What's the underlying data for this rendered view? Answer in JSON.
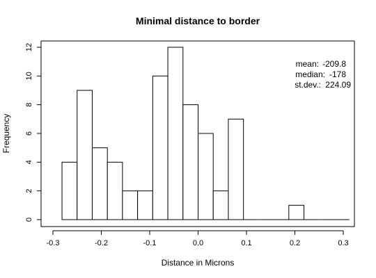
{
  "chart_data": {
    "type": "bar",
    "title": "Minimal distance to border",
    "xlabel": "Distance in Microns",
    "ylabel": "Frequency",
    "bin_width": 0.03125,
    "bins": [
      {
        "start": -0.28125,
        "end": -0.25,
        "count": 4
      },
      {
        "start": -0.25,
        "end": -0.21875,
        "count": 9
      },
      {
        "start": -0.21875,
        "end": -0.1875,
        "count": 5
      },
      {
        "start": -0.1875,
        "end": -0.15625,
        "count": 4
      },
      {
        "start": -0.15625,
        "end": -0.125,
        "count": 2
      },
      {
        "start": -0.125,
        "end": -0.09375,
        "count": 2
      },
      {
        "start": -0.09375,
        "end": -0.0625,
        "count": 10
      },
      {
        "start": -0.0625,
        "end": -0.03125,
        "count": 12
      },
      {
        "start": -0.03125,
        "end": 0.0,
        "count": 8
      },
      {
        "start": 0.0,
        "end": 0.03125,
        "count": 6
      },
      {
        "start": 0.03125,
        "end": 0.0625,
        "count": 2
      },
      {
        "start": 0.0625,
        "end": 0.09375,
        "count": 7
      },
      {
        "start": 0.09375,
        "end": 0.125,
        "count": 0
      },
      {
        "start": 0.125,
        "end": 0.15625,
        "count": 0
      },
      {
        "start": 0.15625,
        "end": 0.1875,
        "count": 0
      },
      {
        "start": 0.1875,
        "end": 0.21875,
        "count": 1
      },
      {
        "start": 0.21875,
        "end": 0.25,
        "count": 0
      },
      {
        "start": 0.25,
        "end": 0.28125,
        "count": 0
      },
      {
        "start": 0.28125,
        "end": 0.3125,
        "count": 0
      }
    ],
    "xlim": [
      -0.3,
      0.3
    ],
    "ylim": [
      0,
      12
    ],
    "x_ticks": [
      -0.3,
      -0.2,
      -0.1,
      0.0,
      0.1,
      0.2,
      0.3
    ],
    "x_tick_labels": [
      "-0.3",
      "-0.2",
      "-0.1",
      "0.0",
      "0.1",
      "0.2",
      "0.3"
    ],
    "y_ticks": [
      0,
      2,
      4,
      6,
      8,
      10,
      12
    ],
    "y_tick_labels": [
      "0",
      "2",
      "4",
      "6",
      "8",
      "10",
      "12"
    ],
    "grid": false,
    "annotations": {
      "placement": "top-right",
      "rows": [
        {
          "label": "mean:",
          "value": "-209.8"
        },
        {
          "label": "median:",
          "value": "-178"
        },
        {
          "label": "st.dev.:",
          "value": "224.09"
        }
      ]
    }
  }
}
